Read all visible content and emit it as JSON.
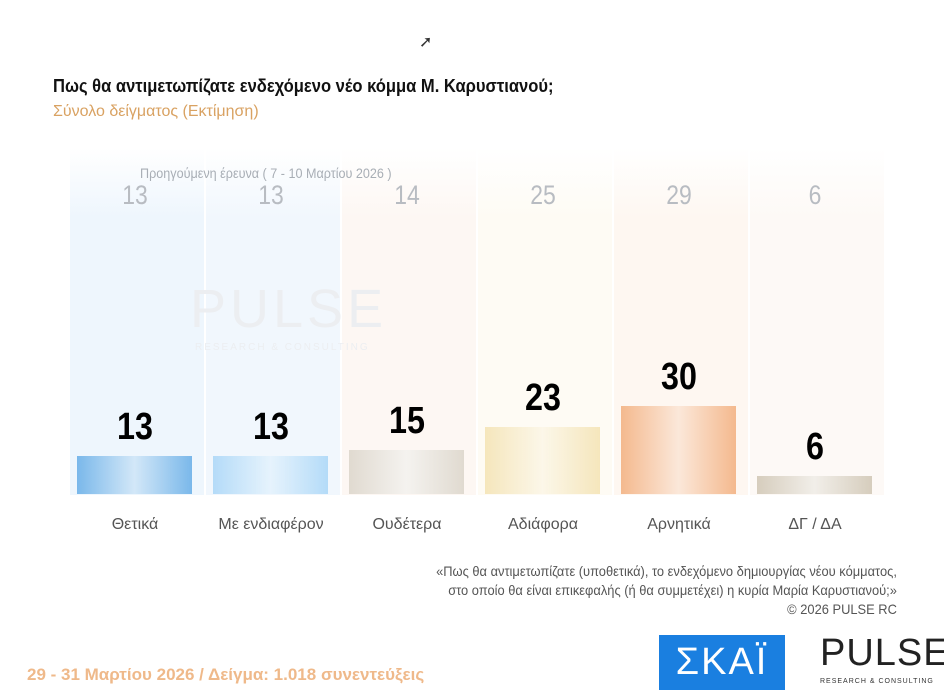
{
  "header": {
    "title": "Πως θα αντιμετωπίζατε ενδεχόμενο νέο κόμμα Μ. Καρυστιανού;",
    "subtitle": "Σύνολο δείγματος  (Εκτίμηση)"
  },
  "chart_data": {
    "type": "bar",
    "title": "Πως θα αντιμετωπίζατε ενδεχόμενο νέο κόμμα Μ. Καρυστιανού;",
    "subtitle": "Σύνολο δείγματος  (Εκτίμηση)",
    "categories": [
      "Θετικά",
      "Με ενδιαφέρον",
      "Ουδέτερα",
      "Αδιάφορα",
      "Αρνητικά",
      "ΔΓ / ΔΑ"
    ],
    "series": [
      {
        "name": "",
        "values": [
          13,
          13,
          15,
          23,
          30,
          6
        ]
      },
      {
        "name": "Προηγούμενη έρευνα ( 7 - 10 Μαρτίου 2026 )",
        "values": [
          13,
          13,
          14,
          25,
          29,
          6
        ]
      }
    ],
    "colors": [
      "#7ab8ea",
      "#b4dbf8",
      "#e0dad0",
      "#f5e6bc",
      "#f4b98e",
      "#d6cdbd"
    ],
    "ylim": [
      0,
      100
    ],
    "grid": false
  },
  "watermark": {
    "brand": "PULSE",
    "tagline": "RESEARCH & CONSULTING"
  },
  "note": {
    "line1": "«Πως θα αντιμετωπίζατε (υποθετικά), το ενδεχόμενο δημιουργίας νέου κόμματος,",
    "line2": "στο οποίο θα είναι επικεφαλής (ή θα συμμετέχει) η κυρία Μαρία Καρυστιανού;»",
    "copyright": "©  2026  PULSE RC"
  },
  "footer": {
    "text": "29 - 31  Μαρτίου 2026  /  Δείγμα:  1.018 συνεντεύξεις"
  },
  "logos": {
    "skai": "ΣΚΑΪ",
    "pulse": "PULSE",
    "pulse_tagline": "RESEARCH & CONSULTING"
  }
}
